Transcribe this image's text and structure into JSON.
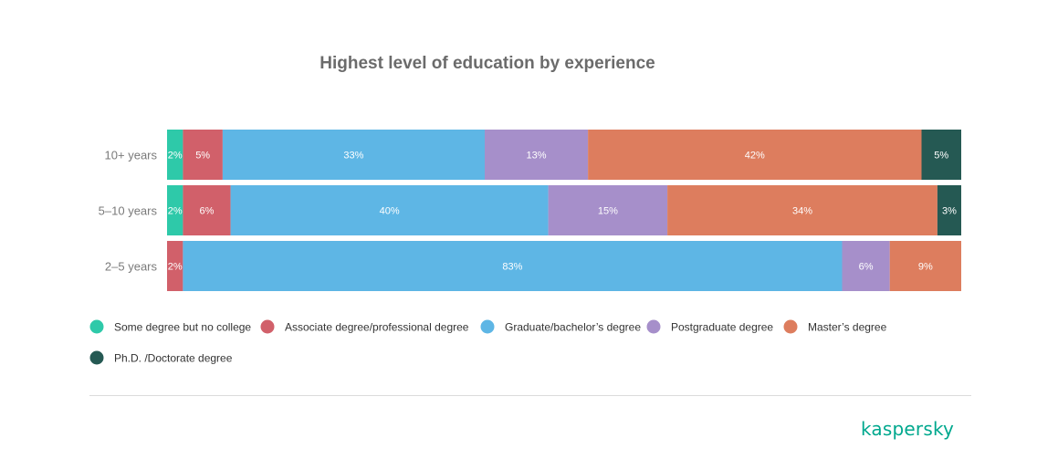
{
  "chart_data": {
    "type": "bar",
    "orientation": "horizontal",
    "stacked": true,
    "title": "Highest level of education by experience",
    "categories": [
      "10+ years",
      "5–10 years",
      "2–5 years"
    ],
    "series": [
      {
        "name": "Some degree but no college",
        "color": "#2ec9a9",
        "values": [
          2,
          2,
          0
        ],
        "labels": [
          "2%",
          "2%",
          ""
        ]
      },
      {
        "name": "Associate degree/professional degree",
        "color": "#d1606a",
        "values": [
          5,
          6,
          2
        ],
        "labels": [
          "5%",
          "6%",
          "2%"
        ]
      },
      {
        "name": "Graduate/bachelor’s degree",
        "color": "#5eb6e5",
        "values": [
          33,
          40,
          83
        ],
        "labels": [
          "33%",
          "40%",
          "83%"
        ]
      },
      {
        "name": "Postgraduate degree",
        "color": "#a68fca",
        "values": [
          13,
          15,
          6
        ],
        "labels": [
          "13%",
          "15%",
          "6%"
        ]
      },
      {
        "name": "Master’s degree",
        "color": "#dd7d5e",
        "values": [
          42,
          34,
          9
        ],
        "labels": [
          "42%",
          "34%",
          "9%"
        ]
      },
      {
        "name": "Ph.D. /Doctorate degree",
        "color": "#255953",
        "values": [
          5,
          3,
          0
        ],
        "labels": [
          "5%",
          "3%",
          ""
        ]
      }
    ],
    "legend_position": "bottom"
  },
  "brand": {
    "logo_text": "kaspersky",
    "color": "#00a88e"
  }
}
